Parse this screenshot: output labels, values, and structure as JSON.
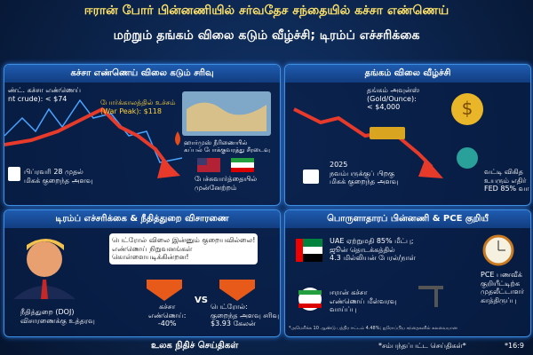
{
  "header": {
    "title_line1": "ஈரான் போர் பின்னணியில் சர்வதேச சந்தையில் கச்சா எண்ணெய்",
    "title_line2": "மற்றும் தங்கம் விலை கடும் வீழ்ச்சி; டிரம்ப் எச்சரிக்கை"
  },
  "panels": [
    {
      "heading": "கச்சா எண்ணெய் விலை கடும் சரிவு",
      "brent_name": "ண்ட். கச்சா எண்ணெய்\nnt crude): < $74",
      "peak": "போர்க்காலத்தில் உச்சம்\n(War Peak): $118",
      "hormuz": "ஹார்முஸ் நீரிணையில்\nகப்பல் போக்குவரத்து சீரடைவு",
      "low": "பிப்ரவரி 28 முதல்\nமிகக் குறைந்த அளவு",
      "talks": "பேச்சுவார்த்தையில்\nமுன்னேற்றம்"
    },
    {
      "heading": "தங்கம் விலை வீழ்ச்சி",
      "gold": "தங்கம் அவுன்ஸ்\n(Gold/Ounce):\n< $4,000",
      "low": "2025\nநவம்பருக்குப் பிறகு\nமிகக் குறைந்த அளவு",
      "fed": "வட்டி விகித\nஉயரும் எதிர்\nFED 85% வா"
    },
    {
      "heading": "டிரம்ப் எச்சரிக்கை & நீதித்துறை விசாரணை",
      "quote": "பெட்ரோல் விலை இன்னும் குறையவில்லை!\nஎண்ணெய் நிறுவனங்கள்\nகொள்ளையடிக்கின்றன!",
      "doj": "நீதித்துறை (DOJ)\nவிசாரணைக்கு உத்தரவு",
      "crude": "கச்சா\nஎண்ணெய்:\n-40%",
      "vs": "VS",
      "petrol": "பெட்ரோல்:\nகுறைந்த அளவு சரிவு\n$3.93 கேலன்"
    },
    {
      "heading": "பொருளாதாரப் பின்னணி & PCE குறியீ",
      "uae": "UAE ஏற்றுமதி 85% மீட்பு;\nஜூன் தொடக்கத்தில்\n4.3 மில்லியன் பேரல்/நாள்",
      "iran": "ஈரான் கச்சா\nஎண்ணெய் மீள்வரவு\nவாய்ப்பு",
      "pce": "PCE பணவீக்\nகுறியீட்டிற்க\nமுதலீட்டாளர்\nகாத்திருப்பு",
      "note": "*அமெரிக்க 10 ஆண்டு பத்திர ஈட்டம் 4.48%; ஐரோப்பிய சந்தைகளில் கலவையான"
    }
  ],
  "footer": {
    "brand": "உலக நிதிச் செய்திகள்",
    "related": "*சம்பந்தப்பட்ட செய்திகள்*",
    "ratio": "*16:9"
  }
}
